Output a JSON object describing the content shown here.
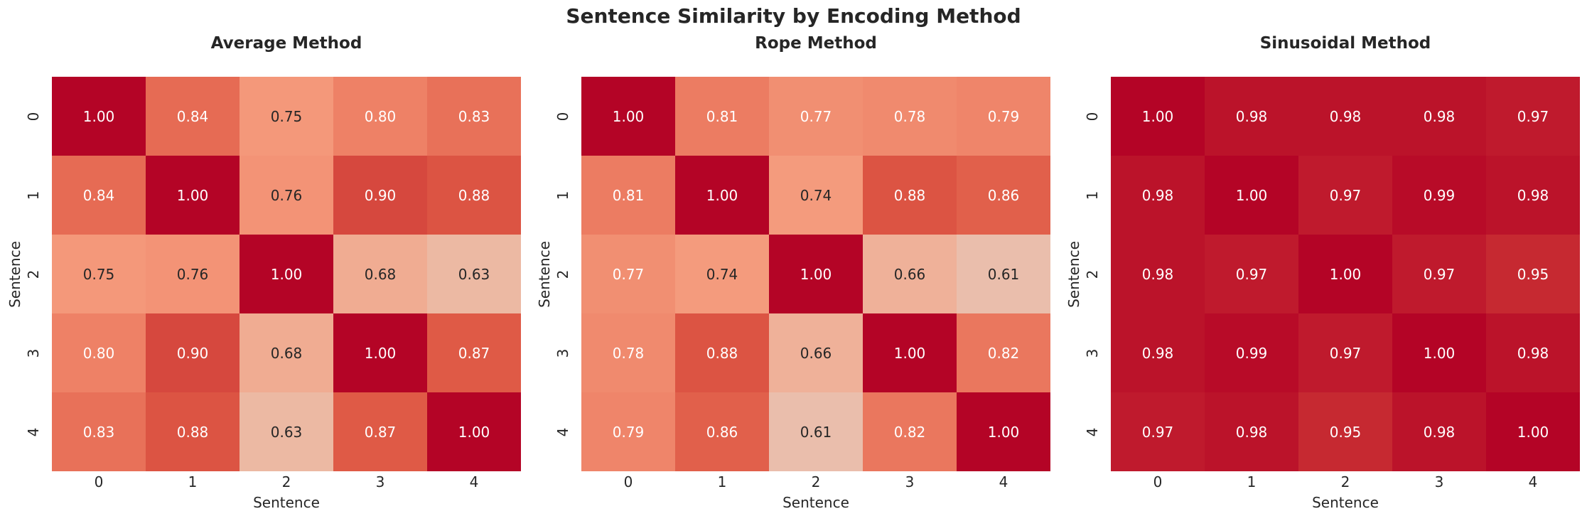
{
  "figure": {
    "title": "Sentence Similarity by Encoding Method",
    "background_color": "#ffffff",
    "text_color": "#262626",
    "annotation_dark_color": "#262626",
    "annotation_light_color": "#ffffff"
  },
  "colormap": {
    "name": "coolwarm",
    "stops": [
      [
        0.0,
        "#3b4cc0"
      ],
      [
        0.25,
        "#8db0fe"
      ],
      [
        0.5,
        "#dddcdc"
      ],
      [
        0.5625,
        "#e5ccc1"
      ],
      [
        0.625,
        "#ecbaa5"
      ],
      [
        0.6875,
        "#f1aa8f"
      ],
      [
        0.75,
        "#f4987a"
      ],
      [
        0.8125,
        "#ec7b61"
      ],
      [
        0.875,
        "#de5744"
      ],
      [
        0.9375,
        "#cb3234"
      ],
      [
        1.0,
        "#b40426"
      ]
    ]
  },
  "chart_data": [
    {
      "type": "heatmap",
      "title": "Average Method",
      "xlabel": "Sentence",
      "ylabel": "Sentence",
      "x_tick_labels": [
        "0",
        "1",
        "2",
        "3",
        "4"
      ],
      "y_tick_labels": [
        "0",
        "1",
        "2",
        "3",
        "4"
      ],
      "vmin": 0,
      "vmax": 1,
      "annotated": true,
      "colorbar": false,
      "values": [
        [
          1.0,
          0.84,
          0.75,
          0.8,
          0.83
        ],
        [
          0.84,
          1.0,
          0.76,
          0.9,
          0.88
        ],
        [
          0.75,
          0.76,
          1.0,
          0.68,
          0.63
        ],
        [
          0.8,
          0.9,
          0.68,
          1.0,
          0.87
        ],
        [
          0.83,
          0.88,
          0.63,
          0.87,
          1.0
        ]
      ]
    },
    {
      "type": "heatmap",
      "title": "Rope Method",
      "xlabel": "Sentence",
      "ylabel": "Sentence",
      "x_tick_labels": [
        "0",
        "1",
        "2",
        "3",
        "4"
      ],
      "y_tick_labels": [
        "0",
        "1",
        "2",
        "3",
        "4"
      ],
      "vmin": 0,
      "vmax": 1,
      "annotated": true,
      "colorbar": false,
      "values": [
        [
          1.0,
          0.81,
          0.77,
          0.78,
          0.79
        ],
        [
          0.81,
          1.0,
          0.74,
          0.88,
          0.86
        ],
        [
          0.77,
          0.74,
          1.0,
          0.66,
          0.61
        ],
        [
          0.78,
          0.88,
          0.66,
          1.0,
          0.82
        ],
        [
          0.79,
          0.86,
          0.61,
          0.82,
          1.0
        ]
      ]
    },
    {
      "type": "heatmap",
      "title": "Sinusoidal Method",
      "xlabel": "Sentence",
      "ylabel": "Sentence",
      "x_tick_labels": [
        "0",
        "1",
        "2",
        "3",
        "4"
      ],
      "y_tick_labels": [
        "0",
        "1",
        "2",
        "3",
        "4"
      ],
      "vmin": 0,
      "vmax": 1,
      "annotated": true,
      "colorbar": false,
      "values": [
        [
          1.0,
          0.98,
          0.98,
          0.98,
          0.97
        ],
        [
          0.98,
          1.0,
          0.97,
          0.99,
          0.98
        ],
        [
          0.98,
          0.97,
          1.0,
          0.97,
          0.95
        ],
        [
          0.98,
          0.99,
          0.97,
          1.0,
          0.98
        ],
        [
          0.97,
          0.98,
          0.95,
          0.98,
          1.0
        ]
      ]
    }
  ]
}
